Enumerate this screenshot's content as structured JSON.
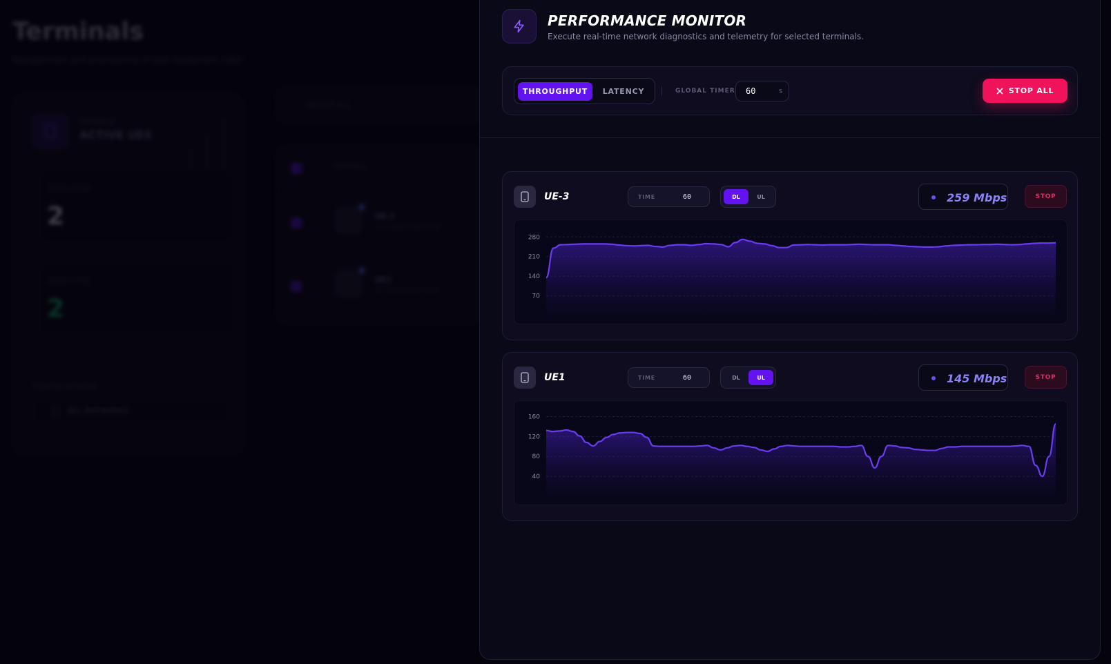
{
  "background": {
    "page_title": "Terminals",
    "page_subtitle": "Management and provisioning of User Equipment (UEs)",
    "card_category": "TERMINALS",
    "card_title": "ACTIVE UES",
    "stats": [
      {
        "label": "TOTAL COUNT",
        "value": "2",
        "color": "#d8d6e6"
      },
      {
        "label": "READY STATE",
        "value": "2",
        "color": "#19b36b"
      }
    ],
    "filter_label": "FILTER BY NETWORK",
    "filter_value": "ALL NETWORKS",
    "search_placeholder": "SELECT ALL",
    "table_header": "TERMINAL",
    "rows": [
      {
        "name": "UE-3",
        "meta": "5G STANDALONE MODE"
      },
      {
        "name": "UE1",
        "meta": "5G STANDALONE MODE"
      }
    ]
  },
  "monitor": {
    "title": "PERFORMANCE MONITOR",
    "subtitle": "Execute real-time network diagnostics and telemetry for selected terminals.",
    "header_icon": "lightning-icon",
    "modes": [
      {
        "label": "THROUGHPUT",
        "active": true
      },
      {
        "label": "LATENCY",
        "active": false
      }
    ],
    "global_timer_label": "GLOBAL TIMER",
    "global_timer_value": "60",
    "global_timer_unit": "S",
    "stop_all_label": "STOP ALL",
    "stop_all_icon": "close-icon",
    "accent_color": "#6213f0",
    "danger_color": "#f0125a",
    "line_color": "#6a3cf0"
  },
  "ues": [
    {
      "name": "UE-3",
      "icon": "phone-icon",
      "time_label": "TIME",
      "time_value": "60",
      "dl_label": "DL",
      "ul_label": "UL",
      "direction": "DL",
      "rate": "259 Mbps",
      "stop_label": "STOP",
      "chart_data": {
        "type": "area",
        "yticks": [
          280,
          210,
          140,
          70
        ],
        "ylim": [
          0,
          320
        ],
        "values": [
          135,
          240,
          252,
          253,
          254,
          255,
          255,
          255,
          255,
          254,
          251,
          249,
          248,
          249,
          250,
          246,
          244,
          250,
          252,
          252,
          250,
          253,
          256,
          255,
          253,
          245,
          260,
          271,
          265,
          257,
          255,
          249,
          242,
          242,
          251,
          252,
          253,
          252,
          251,
          252,
          252,
          252,
          253,
          254,
          253,
          252,
          252,
          252,
          250,
          248,
          246,
          245,
          244,
          244,
          245,
          248,
          250,
          251,
          252,
          252,
          253,
          253,
          254,
          253,
          252,
          253,
          255,
          257,
          258,
          258,
          259
        ]
      }
    },
    {
      "name": "UE1",
      "icon": "phone-icon",
      "time_label": "TIME",
      "time_value": "60",
      "dl_label": "DL",
      "ul_label": "UL",
      "direction": "UL",
      "rate": "145 Mbps",
      "stop_label": "STOP",
      "chart_data": {
        "type": "area",
        "yticks": [
          160,
          120,
          80,
          40
        ],
        "ylim": [
          0,
          180
        ],
        "values": [
          132,
          130,
          131,
          133,
          130,
          121,
          108,
          101,
          110,
          118,
          124,
          127,
          128,
          128,
          126,
          118,
          101,
          100,
          100,
          100,
          100,
          100,
          100,
          101,
          102,
          97,
          93,
          97,
          101,
          102,
          100,
          98,
          93,
          90,
          95,
          100,
          102,
          101,
          100,
          100,
          100,
          100,
          100,
          100,
          99,
          99,
          100,
          102,
          80,
          57,
          80,
          102,
          101,
          98,
          97,
          94,
          93,
          92,
          92,
          96,
          99,
          99,
          100,
          100,
          100,
          100,
          100,
          100,
          100,
          100,
          101,
          102,
          100,
          62,
          40,
          80,
          145
        ]
      }
    }
  ]
}
